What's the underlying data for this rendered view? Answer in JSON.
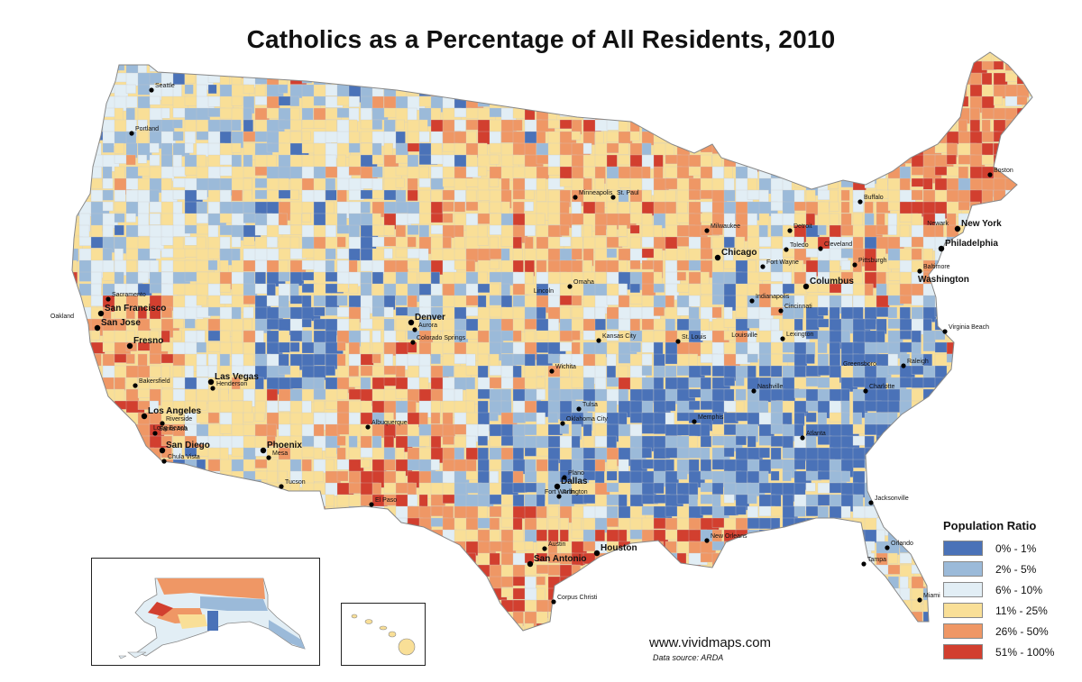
{
  "title": "Catholics as a Percentage of All Residents, 2010",
  "legend": {
    "title": "Population Ratio",
    "items": [
      {
        "label": "0% - 1%",
        "color": "#4a72b8"
      },
      {
        "label": "2% - 5%",
        "color": "#9bbad9"
      },
      {
        "label": "6% - 10%",
        "color": "#e2eef5"
      },
      {
        "label": "11% - 25%",
        "color": "#f9df97"
      },
      {
        "label": "26% - 50%",
        "color": "#ef9765"
      },
      {
        "label": "51% - 100%",
        "color": "#d23f2f"
      }
    ]
  },
  "watermark": "www.vividmaps.com",
  "source": "Data source: ARDA",
  "cities": [
    {
      "name": "Seattle"
    },
    {
      "name": "Portland"
    },
    {
      "name": "Sacramento"
    },
    {
      "name": "San Francisco"
    },
    {
      "name": "Oakland"
    },
    {
      "name": "San Jose"
    },
    {
      "name": "Fresno"
    },
    {
      "name": "Bakersfield"
    },
    {
      "name": "Las Vegas"
    },
    {
      "name": "Henderson"
    },
    {
      "name": "Los Angeles"
    },
    {
      "name": "Riverside"
    },
    {
      "name": "Long Beach"
    },
    {
      "name": "Santa Ana"
    },
    {
      "name": "San Diego"
    },
    {
      "name": "Chula Vista"
    },
    {
      "name": "Phoenix"
    },
    {
      "name": "Mesa"
    },
    {
      "name": "Tucson"
    },
    {
      "name": "Denver"
    },
    {
      "name": "Aurora"
    },
    {
      "name": "Colorado Springs"
    },
    {
      "name": "Albuquerque"
    },
    {
      "name": "El Paso"
    },
    {
      "name": "Minneapolis"
    },
    {
      "name": "St. Paul"
    },
    {
      "name": "Milwaukee"
    },
    {
      "name": "Chicago"
    },
    {
      "name": "Detroit"
    },
    {
      "name": "Toledo"
    },
    {
      "name": "Cleveland"
    },
    {
      "name": "Fort Wayne"
    },
    {
      "name": "Buffalo"
    },
    {
      "name": "Boston"
    },
    {
      "name": "Newark"
    },
    {
      "name": "New York"
    },
    {
      "name": "Philadelphia"
    },
    {
      "name": "Pittsburgh"
    },
    {
      "name": "Baltimore"
    },
    {
      "name": "Washington"
    },
    {
      "name": "Columbus"
    },
    {
      "name": "Indianapolis"
    },
    {
      "name": "Cincinnati"
    },
    {
      "name": "Lincoln"
    },
    {
      "name": "Omaha"
    },
    {
      "name": "Kansas City"
    },
    {
      "name": "St. Louis"
    },
    {
      "name": "Louisville"
    },
    {
      "name": "Lexington"
    },
    {
      "name": "Virginia Beach"
    },
    {
      "name": "Greensboro"
    },
    {
      "name": "Raleigh"
    },
    {
      "name": "Wichita"
    },
    {
      "name": "Tulsa"
    },
    {
      "name": "Oklahoma City"
    },
    {
      "name": "Nashville"
    },
    {
      "name": "Charlotte"
    },
    {
      "name": "Memphis"
    },
    {
      "name": "Atlanta"
    },
    {
      "name": "Dallas"
    },
    {
      "name": "Plano"
    },
    {
      "name": "Fort Worth"
    },
    {
      "name": "Arlington"
    },
    {
      "name": "Austin"
    },
    {
      "name": "San Antonio"
    },
    {
      "name": "Houston"
    },
    {
      "name": "New Orleans"
    },
    {
      "name": "Corpus Christi"
    },
    {
      "name": "Jacksonville"
    },
    {
      "name": "Orlando"
    },
    {
      "name": "Tampa"
    },
    {
      "name": "Miami"
    }
  ]
}
